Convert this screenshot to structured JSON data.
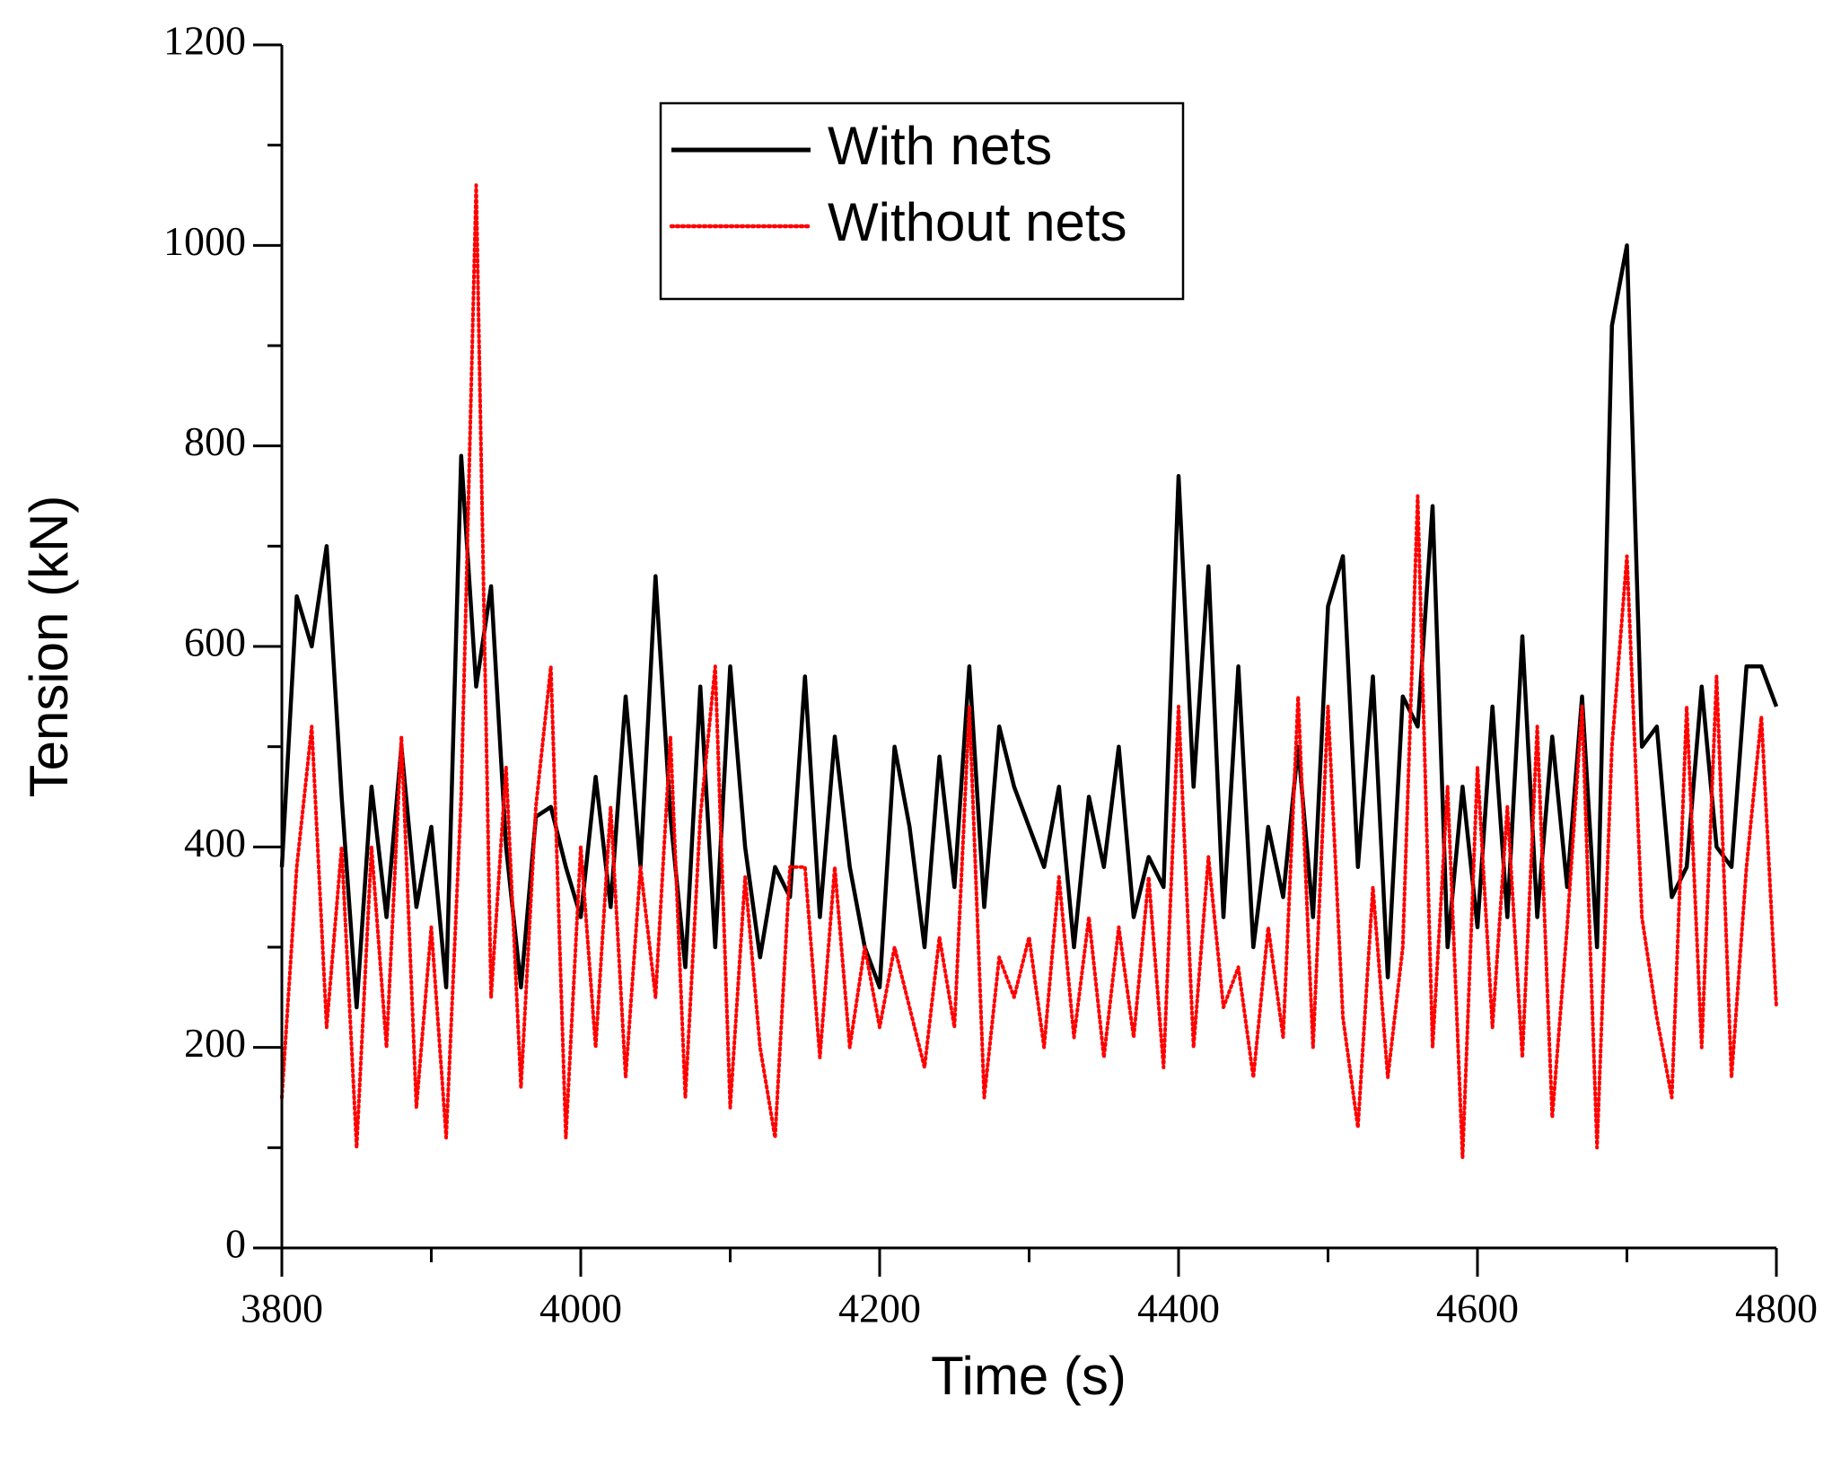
{
  "chart_data": {
    "type": "line",
    "x_label": "Time (s)",
    "y_label": "Tension (kN)",
    "x": [
      3800,
      3810,
      3820,
      3830,
      3840,
      3850,
      3860,
      3870,
      3880,
      3890,
      3900,
      3910,
      3920,
      3930,
      3940,
      3950,
      3960,
      3970,
      3980,
      3990,
      4000,
      4010,
      4020,
      4030,
      4040,
      4050,
      4060,
      4070,
      4080,
      4090,
      4100,
      4110,
      4120,
      4130,
      4140,
      4150,
      4160,
      4170,
      4180,
      4190,
      4200,
      4210,
      4220,
      4230,
      4240,
      4250,
      4260,
      4270,
      4280,
      4290,
      4300,
      4310,
      4320,
      4330,
      4340,
      4350,
      4360,
      4370,
      4380,
      4390,
      4400,
      4410,
      4420,
      4430,
      4440,
      4450,
      4460,
      4470,
      4480,
      4490,
      4500,
      4510,
      4520,
      4530,
      4540,
      4550,
      4560,
      4570,
      4580,
      4590,
      4600,
      4610,
      4620,
      4630,
      4640,
      4650,
      4660,
      4670,
      4680,
      4690,
      4700,
      4710,
      4720,
      4730,
      4740,
      4750,
      4760,
      4770,
      4780,
      4790,
      4800
    ],
    "series": [
      {
        "name": "With nets",
        "color": "#000000",
        "dash": "solid",
        "values": [
          380,
          650,
          600,
          700,
          450,
          240,
          460,
          330,
          500,
          340,
          420,
          260,
          790,
          560,
          660,
          400,
          260,
          430,
          440,
          380,
          330,
          470,
          340,
          550,
          380,
          670,
          430,
          280,
          560,
          300,
          580,
          400,
          290,
          380,
          350,
          570,
          330,
          510,
          380,
          300,
          260,
          500,
          420,
          300,
          490,
          360,
          580,
          340,
          520,
          460,
          420,
          380,
          460,
          300,
          450,
          380,
          500,
          330,
          390,
          360,
          770,
          460,
          680,
          330,
          580,
          300,
          420,
          350,
          500,
          330,
          640,
          690,
          380,
          570,
          270,
          550,
          520,
          740,
          300,
          460,
          320,
          540,
          330,
          610,
          330,
          510,
          360,
          550,
          300,
          920,
          1000,
          500,
          520,
          350,
          380,
          560,
          400,
          380,
          580,
          580,
          540
        ]
      },
      {
        "name": "Without nets",
        "color": "#ff0000",
        "dash": "dotted",
        "values": [
          150,
          380,
          520,
          220,
          400,
          100,
          400,
          200,
          510,
          140,
          320,
          110,
          450,
          1060,
          250,
          480,
          160,
          440,
          580,
          110,
          400,
          200,
          440,
          170,
          380,
          250,
          510,
          150,
          430,
          580,
          140,
          370,
          200,
          110,
          380,
          380,
          190,
          380,
          200,
          300,
          220,
          300,
          240,
          180,
          310,
          220,
          540,
          150,
          290,
          250,
          310,
          200,
          370,
          210,
          330,
          190,
          320,
          210,
          370,
          180,
          540,
          200,
          390,
          240,
          280,
          170,
          320,
          210,
          550,
          200,
          540,
          230,
          120,
          360,
          170,
          300,
          750,
          200,
          460,
          90,
          480,
          220,
          440,
          190,
          520,
          130,
          320,
          540,
          100,
          500,
          690,
          330,
          230,
          150,
          540,
          200,
          570,
          170,
          380,
          530,
          240
        ]
      }
    ],
    "xlim": [
      3800,
      4800
    ],
    "xticks": [
      3800,
      4000,
      4200,
      4400,
      4600,
      4800
    ],
    "xminorticks": [
      3900,
      4100,
      4300,
      4500,
      4700
    ],
    "ylim": [
      0,
      1200
    ],
    "yticks": [
      0,
      200,
      400,
      600,
      800,
      1000,
      1200
    ],
    "yminorticks": [
      100,
      300,
      500,
      700,
      900,
      1100
    ],
    "grid": false,
    "legend": "top-center"
  }
}
